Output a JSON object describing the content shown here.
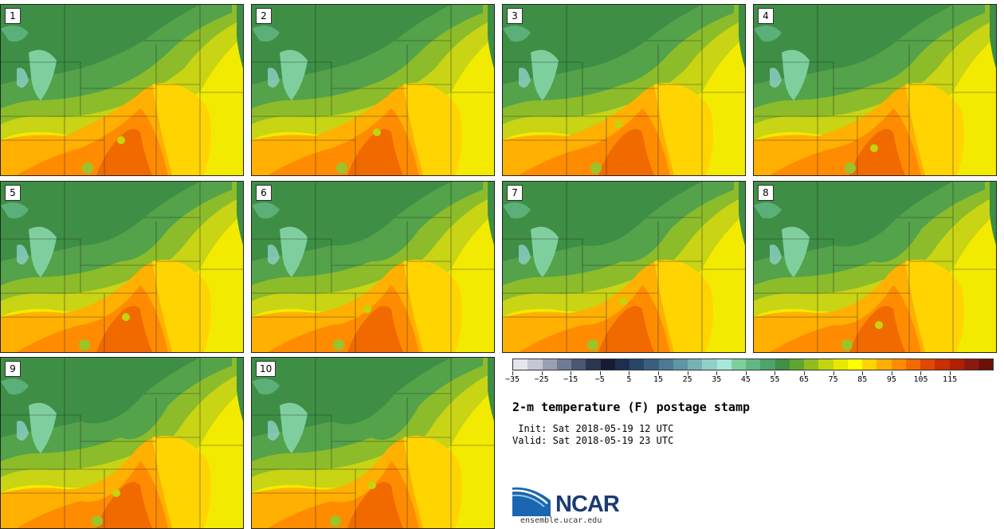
{
  "panels": [
    {
      "label": "1"
    },
    {
      "label": "2"
    },
    {
      "label": "3"
    },
    {
      "label": "4"
    },
    {
      "label": "5"
    },
    {
      "label": "6"
    },
    {
      "label": "7"
    },
    {
      "label": "8"
    },
    {
      "label": "9"
    },
    {
      "label": "10"
    }
  ],
  "colorbar": {
    "colors": [
      "#e4e6ec",
      "#c4c8d4",
      "#9aa0b4",
      "#707a94",
      "#4c5674",
      "#2a3552",
      "#141b33",
      "#1e2e50",
      "#28466a",
      "#3a5f7e",
      "#4b7a92",
      "#5d96a6",
      "#74b2b8",
      "#8fd0c8",
      "#a8e8d8",
      "#7fcf9e",
      "#62b884",
      "#4ea26a",
      "#3f8f45",
      "#5fa431",
      "#8fbd1e",
      "#c4d40d",
      "#e8e800",
      "#ffff00",
      "#ffd400",
      "#ffb000",
      "#ff8c00",
      "#f06a00",
      "#e04800",
      "#c83000",
      "#b02000",
      "#8a1a10",
      "#6a1208"
    ],
    "tick_values": [
      "−35",
      "−25",
      "−15",
      "−5",
      "5",
      "15",
      "25",
      "35",
      "45",
      "55",
      "65",
      "75",
      "85",
      "95",
      "105",
      "115"
    ]
  },
  "title": "2-m temperature (F) postage stamp",
  "init": " Init: Sat 2018-05-19 12 UTC",
  "valid": "Valid: Sat 2018-05-19 23 UTC",
  "logo_text": "NCAR",
  "url": "ensemble.ucar.edu"
}
